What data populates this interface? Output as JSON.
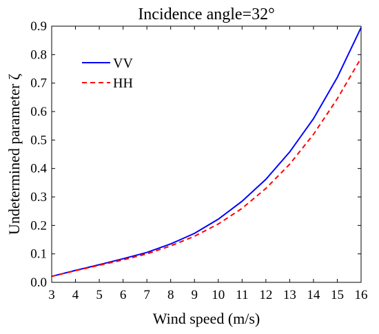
{
  "chart_data": {
    "type": "line",
    "title": "Incidence angle=32°",
    "xlabel": "Wind speed (m/s)",
    "ylabel": "Undetermined parameter ζ",
    "xlim": [
      3,
      16
    ],
    "ylim": [
      0,
      0.9
    ],
    "xticks": [
      3,
      4,
      5,
      6,
      7,
      8,
      9,
      10,
      11,
      12,
      13,
      14,
      15,
      16
    ],
    "yticks": [
      "0.0",
      "0.1",
      "0.2",
      "0.3",
      "0.4",
      "0.5",
      "0.6",
      "0.7",
      "0.8",
      "0.9"
    ],
    "grid": false,
    "legend_position": "top-left",
    "x": [
      3,
      4,
      5,
      6,
      7,
      8,
      9,
      10,
      11,
      12,
      13,
      14,
      15,
      16
    ],
    "series": [
      {
        "name": "VV",
        "color": "#0000ff",
        "line_style": "solid",
        "values": [
          0.021,
          0.042,
          0.062,
          0.083,
          0.105,
          0.135,
          0.172,
          0.222,
          0.285,
          0.362,
          0.458,
          0.575,
          0.72,
          0.895
        ]
      },
      {
        "name": "HH",
        "color": "#ff0000",
        "line_style": "dashed",
        "values": [
          0.021,
          0.041,
          0.06,
          0.079,
          0.1,
          0.128,
          0.162,
          0.205,
          0.26,
          0.33,
          0.415,
          0.52,
          0.645,
          0.788
        ]
      }
    ]
  }
}
